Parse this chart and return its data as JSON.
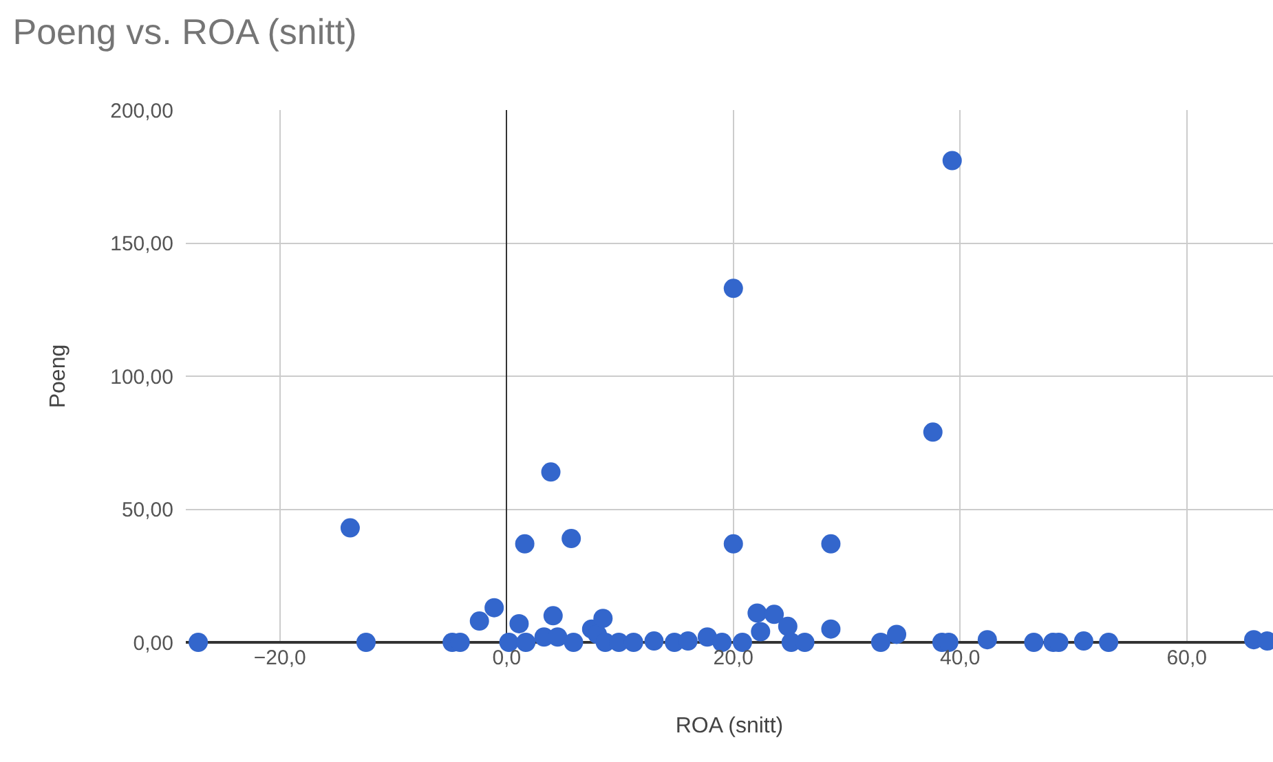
{
  "chart_data": {
    "type": "scatter",
    "title": "Poeng vs. ROA (snitt)",
    "xlabel": "ROA (snitt)",
    "ylabel": "Poeng",
    "x": [
      -27.2,
      -13.8,
      -12.4,
      -4.8,
      -4.1,
      -2.4,
      -1.1,
      0.2,
      1.1,
      1.6,
      1.7,
      3.3,
      3.9,
      4.1,
      4.5,
      5.7,
      5.9,
      7.5,
      8.0,
      8.5,
      8.7,
      9.9,
      11.2,
      13.0,
      14.8,
      16.0,
      17.7,
      19.0,
      20.0,
      20.0,
      20.8,
      22.1,
      22.4,
      23.6,
      24.8,
      25.1,
      26.3,
      28.6,
      28.6,
      33.0,
      34.4,
      37.6,
      38.4,
      39.0,
      39.3,
      42.4,
      46.5,
      48.2,
      48.7,
      50.9,
      53.1,
      65.9,
      67.1
    ],
    "series": [
      {
        "color": "#3366cc",
        "values": [
          0,
          43,
          0,
          0,
          0,
          8,
          13,
          0,
          7,
          37,
          0,
          2,
          64,
          10,
          2,
          39,
          0,
          5,
          3,
          9,
          0,
          0,
          0,
          0.5,
          0,
          0.5,
          2,
          0,
          133,
          37,
          0,
          11,
          4,
          10.5,
          6,
          0,
          0,
          37,
          5,
          0,
          3,
          79,
          0,
          0,
          181,
          1,
          0,
          0,
          0,
          0.5,
          0,
          1,
          0.5
        ]
      }
    ],
    "xlim": [
      -28.3,
      67.6
    ],
    "ylim": [
      0,
      200
    ],
    "xticks": [
      {
        "value": -20,
        "label": "−20,0"
      },
      {
        "value": 0,
        "label": "0,0"
      },
      {
        "value": 20,
        "label": "20,0"
      },
      {
        "value": 40,
        "label": "40,0"
      },
      {
        "value": 60,
        "label": "60,0"
      }
    ],
    "yticks": [
      {
        "value": 0,
        "label": "0,00"
      },
      {
        "value": 50,
        "label": "50,00"
      },
      {
        "value": 100,
        "label": "100,00"
      },
      {
        "value": 150,
        "label": "150,00"
      },
      {
        "value": 200,
        "label": "200,00"
      }
    ],
    "grid": true,
    "marker": "circle"
  }
}
